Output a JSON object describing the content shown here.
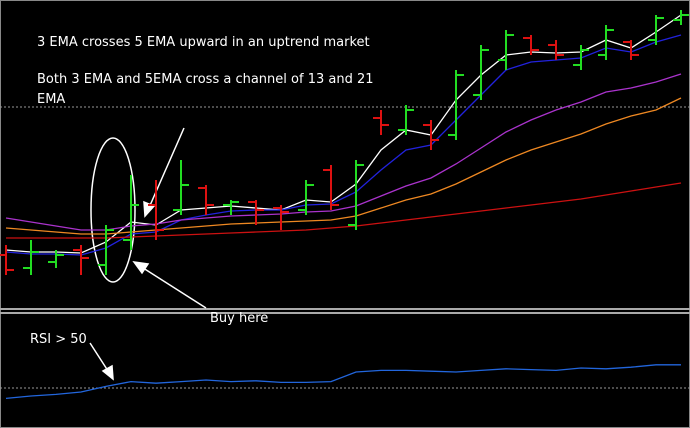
{
  "chart_data": [
    {
      "type": "ohlc",
      "annotations": [
        "3 EMA crosses 5 EMA upward in an uptrend market",
        "Both 3 EMA and 5EMA cross a channel of 13 and 21 EMA",
        "Buy here"
      ],
      "open": [
        55,
        42,
        48,
        60,
        45,
        70,
        105,
        100,
        122,
        105,
        108,
        102,
        100,
        140,
        85,
        192,
        180,
        185,
        175,
        215,
        250,
        272,
        265,
        245,
        255,
        268,
        270,
        290
      ],
      "high": [
        65,
        70,
        60,
        65,
        85,
        135,
        130,
        150,
        125,
        110,
        110,
        105,
        130,
        145,
        150,
        200,
        205,
        190,
        240,
        265,
        280,
        275,
        270,
        265,
        285,
        270,
        295,
        300
      ],
      "low": [
        35,
        35,
        42,
        35,
        35,
        60,
        70,
        95,
        95,
        95,
        85,
        80,
        95,
        100,
        80,
        175,
        175,
        160,
        170,
        210,
        240,
        255,
        250,
        240,
        250,
        250,
        265,
        285
      ],
      "close": [
        40,
        58,
        55,
        52,
        80,
        105,
        80,
        125,
        105,
        108,
        100,
        98,
        125,
        105,
        145,
        185,
        200,
        170,
        235,
        260,
        275,
        260,
        255,
        260,
        280,
        255,
        292,
        295
      ],
      "up_color": "#22dd22",
      "down_color": "#dd1111",
      "series": [
        {
          "color": "#ffffff",
          "values": [
            60,
            58,
            58,
            57,
            68,
            88,
            85,
            100,
            102,
            104,
            102,
            100,
            110,
            108,
            126,
            160,
            180,
            175,
            210,
            235,
            255,
            258,
            257,
            258,
            270,
            262,
            278,
            295
          ]
        },
        {
          "color": "#2222dd",
          "values": [
            58,
            56,
            56,
            55,
            62,
            76,
            78,
            90,
            95,
            99,
            100,
            100,
            105,
            106,
            118,
            140,
            160,
            165,
            190,
            215,
            240,
            248,
            250,
            252,
            262,
            258,
            268,
            275
          ]
        },
        {
          "color": "#aa33cc",
          "values": [
            92,
            88,
            84,
            80,
            80,
            84,
            86,
            90,
            92,
            94,
            95,
            96,
            98,
            99,
            104,
            114,
            124,
            132,
            146,
            162,
            178,
            190,
            200,
            208,
            218,
            222,
            228,
            236
          ]
        },
        {
          "color": "#ee8822",
          "values": [
            82,
            80,
            78,
            76,
            76,
            78,
            80,
            82,
            84,
            86,
            87,
            88,
            89,
            90,
            94,
            102,
            110,
            116,
            126,
            138,
            150,
            160,
            168,
            176,
            186,
            194,
            200,
            212
          ]
        },
        {
          "color": "#cc1111",
          "values": [
            72,
            72,
            72,
            72,
            72,
            73,
            74,
            75,
            76,
            77,
            78,
            79,
            80,
            82,
            84,
            87,
            90,
            93,
            96,
            99,
            102,
            105,
            108,
            111,
            115,
            119,
            123,
            127
          ]
        }
      ],
      "ylim": [
        0,
        310
      ],
      "hline": 203
    },
    {
      "type": "line",
      "annotations": [
        "RSI > 50"
      ],
      "series": [
        {
          "color": "#2266dd",
          "values": [
            37,
            40,
            42,
            45,
            52,
            58,
            56,
            58,
            60,
            58,
            59,
            57,
            57,
            58,
            70,
            72,
            72,
            71,
            70,
            72,
            74,
            73,
            72,
            75,
            74,
            76,
            79,
            79
          ]
        }
      ],
      "ylim": [
        0,
        100
      ],
      "hline": 50
    }
  ]
}
